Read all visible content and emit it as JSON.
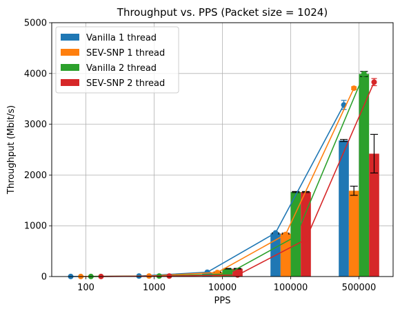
{
  "chart_data": {
    "type": "bar",
    "title": "Throughput vs. PPS (Packet size = 1024)",
    "xlabel": "PPS",
    "ylabel": "Throughput (Mbit/s)",
    "categories": [
      "100",
      "1000",
      "10000",
      "100000",
      "500000"
    ],
    "ylim": [
      0,
      5000
    ],
    "yticks": [
      0,
      1000,
      2000,
      3000,
      4000,
      5000
    ],
    "grid": true,
    "legend_position": "top-left",
    "series": [
      {
        "name": "Vanilla 1 thread",
        "color": "#1f77b4",
        "bar_values": [
          1,
          10,
          75,
          850,
          2680
        ],
        "bar_errors": [
          0,
          0,
          5,
          10,
          20
        ],
        "line_values": [
          1,
          10,
          85,
          860,
          3380
        ],
        "line_errors": [
          0,
          0,
          5,
          10,
          90
        ]
      },
      {
        "name": "SEV-SNP 1 thread",
        "color": "#ff7f0e",
        "bar_values": [
          1,
          10,
          85,
          845,
          1690
        ],
        "bar_errors": [
          0,
          0,
          5,
          10,
          90
        ],
        "line_values": [
          1,
          10,
          80,
          830,
          3710
        ],
        "line_errors": [
          0,
          0,
          5,
          10,
          30
        ]
      },
      {
        "name": "Vanilla 2 thread",
        "color": "#2ca02c",
        "bar_values": [
          1,
          10,
          155,
          1665,
          3990
        ],
        "bar_errors": [
          0,
          0,
          5,
          10,
          50
        ],
        "line_values": [
          1,
          10,
          50,
          790,
          3990
        ],
        "line_errors": [
          0,
          0,
          5,
          10,
          40
        ]
      },
      {
        "name": "SEV-SNP 2 thread",
        "color": "#d62728",
        "bar_values": [
          1,
          10,
          155,
          1665,
          2420
        ],
        "bar_errors": [
          0,
          0,
          5,
          10,
          380
        ],
        "line_values": [
          1,
          10,
          30,
          730,
          3830
        ],
        "line_errors": [
          0,
          0,
          5,
          10,
          70
        ]
      }
    ]
  }
}
